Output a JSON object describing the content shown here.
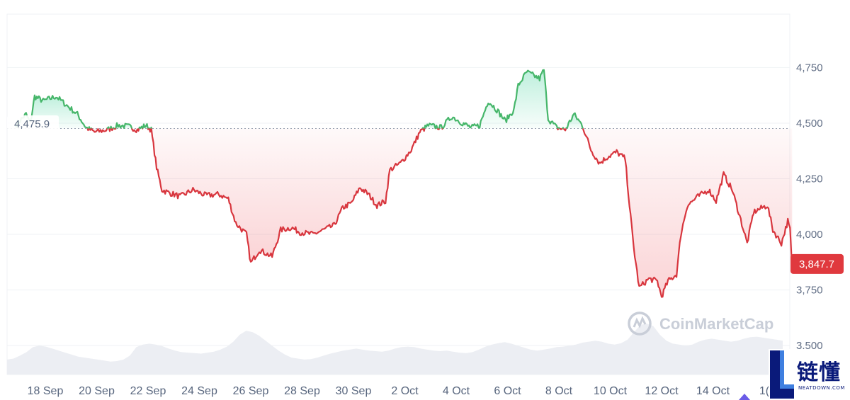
{
  "chart_data": {
    "type": "area",
    "x_ticks": [
      "18 Sep",
      "20 Sep",
      "22 Sep",
      "24 Sep",
      "26 Sep",
      "28 Sep",
      "30 Sep",
      "2 Oct",
      "4 Oct",
      "6 Oct",
      "8 Oct",
      "10 Oct",
      "12 Oct",
      "14 Oct",
      "16 Oct"
    ],
    "x_tick_label_visible": [
      "18 Sep",
      "20 Sep",
      "22 Sep",
      "24 Sep",
      "26 Sep",
      "28 Sep",
      "30 Sep",
      "2 Oct",
      "4 Oct",
      "6 Oct",
      "8 Oct",
      "10 Oct",
      "12 Oct",
      "14 Oct",
      "1("
    ],
    "y_ticks": [
      3500,
      3750,
      4000,
      4250,
      4500,
      4750
    ],
    "y_tick_labels": [
      "3,500",
      "3,750",
      "4,000",
      "4,250",
      "4,500",
      "4,750"
    ],
    "ylim": [
      3370,
      4990
    ],
    "baseline": 4475.9,
    "baseline_label": "4,475.9",
    "current_value": 3847.7,
    "current_label": "3,847.7",
    "colors": {
      "up": "#16c784",
      "up_line": "#46b66a",
      "down": "#ea3943",
      "down_line": "#d8363e",
      "badge": "#e0393e"
    },
    "x_range": [
      "2025-09-16T20:00",
      "2025-10-16T12:00"
    ],
    "series": [
      {
        "points": [
          [
            "2025-09-16T20:00",
            4490
          ],
          [
            "2025-09-17T06:00",
            4540
          ],
          [
            "2025-09-17T10:00",
            4500
          ],
          [
            "2025-09-17T14:00",
            4620
          ],
          [
            "2025-09-17T22:00",
            4600
          ],
          [
            "2025-09-18T10:00",
            4620
          ],
          [
            "2025-09-18T20:00",
            4580
          ],
          [
            "2025-09-19T06:00",
            4540
          ],
          [
            "2025-09-19T14:00",
            4480
          ],
          [
            "2025-09-19T22:00",
            4460
          ],
          [
            "2025-09-20T10:00",
            4470
          ],
          [
            "2025-09-20T20:00",
            4490
          ],
          [
            "2025-09-21T06:00",
            4485
          ],
          [
            "2025-09-21T14:00",
            4470
          ],
          [
            "2025-09-21T22:00",
            4490
          ],
          [
            "2025-09-22T03:00",
            4470
          ],
          [
            "2025-09-22T08:00",
            4300
          ],
          [
            "2025-09-22T13:00",
            4200
          ],
          [
            "2025-09-22T18:00",
            4190
          ],
          [
            "2025-09-23T06:00",
            4170
          ],
          [
            "2025-09-23T18:00",
            4200
          ],
          [
            "2025-09-24T06:00",
            4175
          ],
          [
            "2025-09-24T18:00",
            4180
          ],
          [
            "2025-09-25T03:00",
            4160
          ],
          [
            "2025-09-25T10:00",
            4050
          ],
          [
            "2025-09-25T20:00",
            4000
          ],
          [
            "2025-09-26T00:00",
            3870
          ],
          [
            "2025-09-26T08:00",
            3930
          ],
          [
            "2025-09-26T20:00",
            3900
          ],
          [
            "2025-09-27T04:00",
            4020
          ],
          [
            "2025-09-27T14:00",
            4030
          ],
          [
            "2025-09-27T22:00",
            4010
          ],
          [
            "2025-09-28T10:00",
            4000
          ],
          [
            "2025-09-28T20:00",
            4020
          ],
          [
            "2025-09-29T06:00",
            4040
          ],
          [
            "2025-09-29T14:00",
            4120
          ],
          [
            "2025-09-29T22:00",
            4140
          ],
          [
            "2025-09-30T06:00",
            4210
          ],
          [
            "2025-09-30T14:00",
            4180
          ],
          [
            "2025-09-30T22:00",
            4130
          ],
          [
            "2025-10-01T06:00",
            4150
          ],
          [
            "2025-10-01T10:00",
            4290
          ],
          [
            "2025-10-01T20:00",
            4320
          ],
          [
            "2025-10-02T06:00",
            4380
          ],
          [
            "2025-10-02T14:00",
            4460
          ],
          [
            "2025-10-02T22:00",
            4490
          ],
          [
            "2025-10-03T10:00",
            4480
          ],
          [
            "2025-10-03T20:00",
            4530
          ],
          [
            "2025-10-04T06:00",
            4500
          ],
          [
            "2025-10-04T14:00",
            4480
          ],
          [
            "2025-10-04T22:00",
            4490
          ],
          [
            "2025-10-05T06:00",
            4600
          ],
          [
            "2025-10-05T14:00",
            4560
          ],
          [
            "2025-10-05T22:00",
            4510
          ],
          [
            "2025-10-06T06:00",
            4560
          ],
          [
            "2025-10-06T10:00",
            4670
          ],
          [
            "2025-10-06T18:00",
            4730
          ],
          [
            "2025-10-07T06:00",
            4700
          ],
          [
            "2025-10-07T10:00",
            4740
          ],
          [
            "2025-10-07T14:00",
            4520
          ],
          [
            "2025-10-07T22:00",
            4480
          ],
          [
            "2025-10-08T06:00",
            4470
          ],
          [
            "2025-10-08T14:00",
            4540
          ],
          [
            "2025-10-08T22:00",
            4490
          ],
          [
            "2025-10-09T06:00",
            4380
          ],
          [
            "2025-10-09T14:00",
            4320
          ],
          [
            "2025-10-09T22:00",
            4350
          ],
          [
            "2025-10-10T06:00",
            4370
          ],
          [
            "2025-10-10T14:00",
            4340
          ],
          [
            "2025-10-10T18:00",
            4130
          ],
          [
            "2025-10-10T22:00",
            3940
          ],
          [
            "2025-10-11T03:00",
            3760
          ],
          [
            "2025-10-11T12:00",
            3800
          ],
          [
            "2025-10-11T20:00",
            3790
          ],
          [
            "2025-10-12T00:00",
            3720
          ],
          [
            "2025-10-12T06:00",
            3790
          ],
          [
            "2025-10-12T14:00",
            3820
          ],
          [
            "2025-10-12T18:00",
            4000
          ],
          [
            "2025-10-13T00:00",
            4130
          ],
          [
            "2025-10-13T10:00",
            4170
          ],
          [
            "2025-10-13T20:00",
            4200
          ],
          [
            "2025-10-14T03:00",
            4150
          ],
          [
            "2025-10-14T10:00",
            4270
          ],
          [
            "2025-10-14T18:00",
            4200
          ],
          [
            "2025-10-15T00:00",
            4100
          ],
          [
            "2025-10-15T08:00",
            3960
          ],
          [
            "2025-10-15T14:00",
            4100
          ],
          [
            "2025-10-15T22:00",
            4120
          ],
          [
            "2025-10-16T03:00",
            4130
          ],
          [
            "2025-10-16T08:00",
            4020
          ],
          [
            "2025-10-16T16:00",
            3960
          ],
          [
            "2025-10-16T22:00",
            4060
          ],
          [
            "2025-10-17T00:00",
            4020
          ],
          [
            "2025-10-17T02:00",
            3847.7
          ]
        ]
      }
    ],
    "volume": [
      0.3,
      0.32,
      0.38,
      0.45,
      0.55,
      0.58,
      0.56,
      0.52,
      0.48,
      0.44,
      0.4,
      0.36,
      0.34,
      0.32,
      0.3,
      0.28,
      0.26,
      0.27,
      0.3,
      0.38,
      0.55,
      0.6,
      0.62,
      0.6,
      0.57,
      0.52,
      0.48,
      0.45,
      0.44,
      0.43,
      0.42,
      0.44,
      0.46,
      0.5,
      0.56,
      0.66,
      0.8,
      0.88,
      0.85,
      0.78,
      0.68,
      0.58,
      0.48,
      0.4,
      0.34,
      0.32,
      0.3,
      0.31,
      0.34,
      0.38,
      0.42,
      0.45,
      0.48,
      0.5,
      0.52,
      0.5,
      0.48,
      0.47,
      0.46,
      0.48,
      0.52,
      0.55,
      0.56,
      0.55,
      0.52,
      0.5,
      0.48,
      0.47,
      0.48,
      0.46,
      0.44,
      0.43,
      0.45,
      0.5,
      0.56,
      0.6,
      0.63,
      0.65,
      0.62,
      0.58,
      0.54,
      0.5,
      0.48,
      0.5,
      0.52,
      0.55,
      0.56,
      0.58,
      0.6,
      0.64,
      0.66,
      0.68,
      0.66,
      0.62,
      0.6,
      0.63,
      0.7,
      0.85,
      1.0,
      1.02,
      0.97,
      0.8,
      0.68,
      0.62,
      0.6,
      0.58,
      0.6,
      0.66,
      0.7,
      0.72,
      0.7,
      0.68,
      0.66,
      0.68,
      0.72,
      0.75,
      0.76,
      0.74,
      0.72,
      0.7,
      0.68
    ],
    "watermark": "CoinMarketCap"
  },
  "logo": {
    "cn": "链懂",
    "url": "NEATDOWN.COM"
  }
}
